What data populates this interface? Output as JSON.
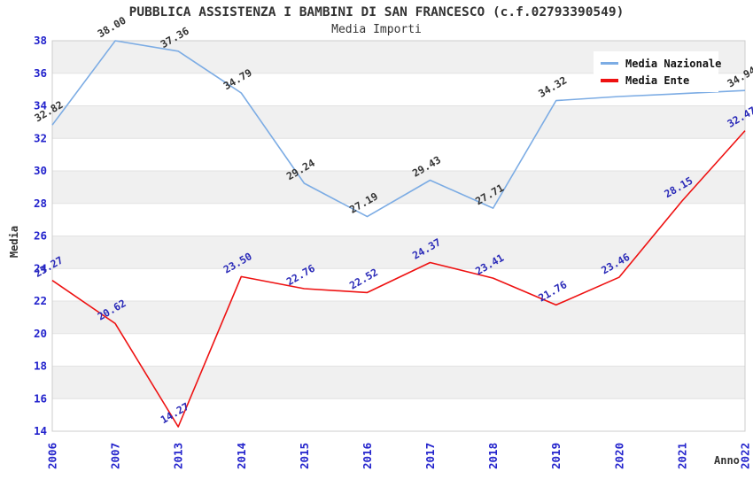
{
  "title": "PUBBLICA ASSISTENZA I BAMBINI DI SAN FRANCESCO (c.f.02793390549)",
  "subtitle": "Media Importi",
  "colors": {
    "background": "#ffffff",
    "band_gray": "#f0f0f0",
    "gridline": "#e2e2e2",
    "plot_border": "#cccccc",
    "axis_tick_label": "#2222cc",
    "title_text": "#333333"
  },
  "chart_data": {
    "type": "line",
    "title": "PUBBLICA ASSISTENZA I BAMBINI DI SAN FRANCESCO (c.f.02793390549)",
    "subtitle": "Media Importi",
    "xlabel": "Anno",
    "ylabel": "Media",
    "categories": [
      "2006",
      "2007",
      "2013",
      "2014",
      "2015",
      "2016",
      "2017",
      "2018",
      "2019",
      "2020",
      "2021",
      "2022"
    ],
    "ylim": [
      14,
      38
    ],
    "ytick_step": 2,
    "grid": "alternating-horizontal-bands",
    "legend_position": "top-right-inside",
    "series": [
      {
        "name": "Media Nazionale",
        "color": "#7cace4",
        "label_color": "#333333",
        "values": [
          32.82,
          38.0,
          37.36,
          34.79,
          29.24,
          27.19,
          29.43,
          27.71,
          34.32,
          34.57,
          34.75,
          34.94
        ],
        "labels": [
          "32.82",
          "38.00",
          "37.36",
          "34.79",
          "29.24",
          "27.19",
          "29.43",
          "27.71",
          "34.32",
          "",
          "",
          "34.94"
        ]
      },
      {
        "name": "Media Ente",
        "color": "#ee1111",
        "label_color": "#2a2ab8",
        "values": [
          23.27,
          20.62,
          14.27,
          23.5,
          22.76,
          22.52,
          24.37,
          23.41,
          21.76,
          23.46,
          28.15,
          32.47
        ],
        "labels": [
          "23.27",
          "20.62",
          "14.27",
          "23.50",
          "22.76",
          "22.52",
          "24.37",
          "23.41",
          "21.76",
          "23.46",
          "28.15",
          "32.47"
        ]
      }
    ]
  }
}
